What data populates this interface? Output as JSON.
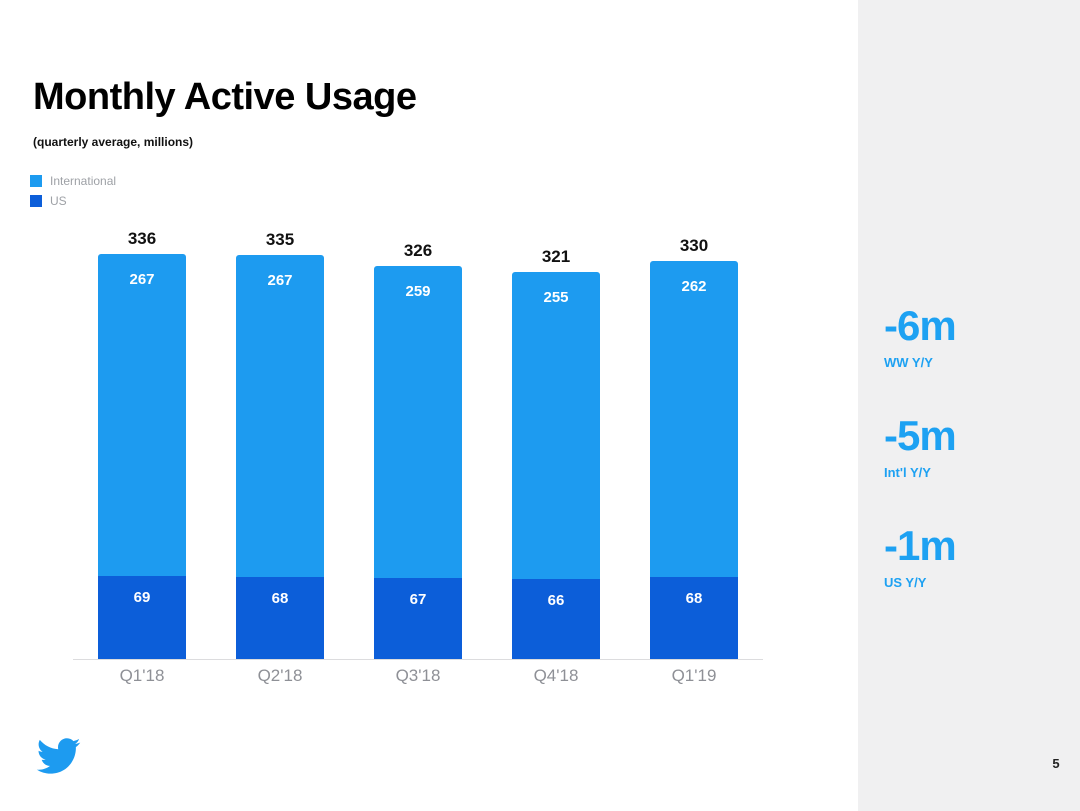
{
  "slide": {
    "title": "Monthly Active Usage",
    "subtitle": "(quarterly average, millions)",
    "page_number": "5"
  },
  "legend": [
    {
      "label": "International",
      "color": "#1d9bf0"
    },
    {
      "label": "US",
      "color": "#0c5ed9"
    }
  ],
  "chart_data": {
    "type": "bar",
    "stacked": true,
    "title": "Monthly Active Usage",
    "subtitle": "(quarterly average, millions)",
    "categories": [
      "Q1'18",
      "Q2'18",
      "Q3'18",
      "Q4'18",
      "Q1'19"
    ],
    "series": [
      {
        "name": "International",
        "color": "#1d9bf0",
        "values": [
          267,
          267,
          259,
          255,
          262
        ]
      },
      {
        "name": "US",
        "color": "#0c5ed9",
        "values": [
          69,
          68,
          67,
          66,
          68
        ]
      }
    ],
    "totals": [
      336,
      335,
      326,
      321,
      330
    ],
    "ylim": [
      0,
      336
    ],
    "grid": false,
    "legend_position": "top-left",
    "value_labels": "inside-white, totals-above"
  },
  "stats": [
    {
      "value": "-6m",
      "label": "WW Y/Y"
    },
    {
      "value": "-5m",
      "label": "Int'l Y/Y"
    },
    {
      "value": "-1m",
      "label": "US Y/Y"
    }
  ],
  "colors": {
    "accent_blue": "#1da1f2",
    "international_blue": "#1d9bf0",
    "us_blue": "#0c5ed9",
    "sidebar_bg": "#f0f0f1",
    "muted_text": "#8e9096"
  }
}
